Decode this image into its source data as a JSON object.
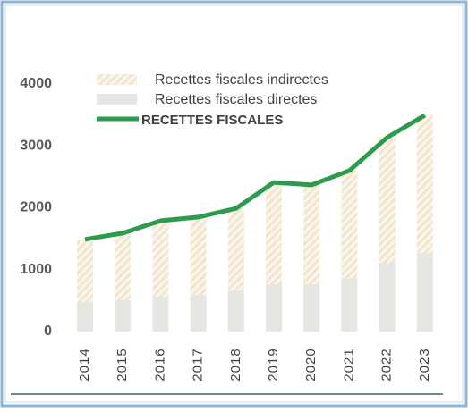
{
  "chart_data": {
    "type": "bar_line",
    "categories": [
      "2014",
      "2015",
      "2016",
      "2017",
      "2018",
      "2019",
      "2020",
      "2021",
      "2022",
      "2023"
    ],
    "series": [
      {
        "name": "Recettes fiscales indirectes",
        "color": "#f3e6cf",
        "values": [
          1020,
          1085,
          1227,
          1260,
          1325,
          1645,
          1605,
          1735,
          2025,
          2225
        ]
      },
      {
        "name": "Recettes fiscales directes",
        "color": "#e6e6e3",
        "values": [
          470,
          505,
          563,
          590,
          665,
          765,
          765,
          865,
          1110,
          1270
        ]
      },
      {
        "name": "RECETTES FISCALES",
        "color": "#2e9a4e",
        "values": [
          1490,
          1590,
          1790,
          1850,
          1990,
          2410,
          2370,
          2600,
          3135,
          3495
        ]
      }
    ],
    "ylim": [
      0,
      4000
    ],
    "yticks": [
      0,
      1000,
      2000,
      3000,
      4000
    ]
  }
}
